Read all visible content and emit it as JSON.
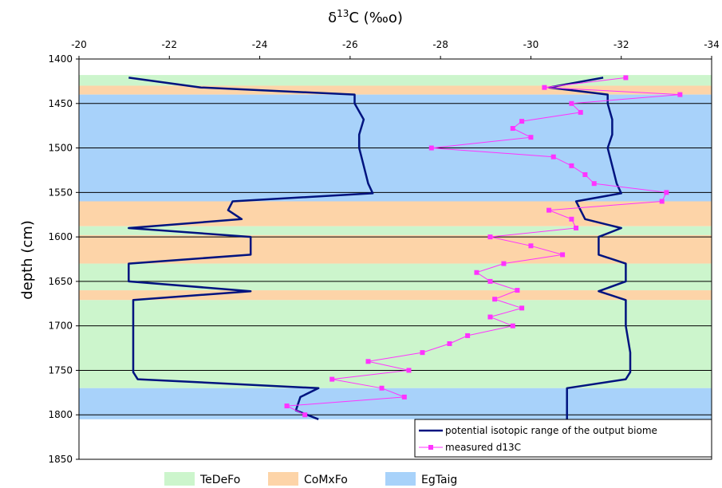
{
  "chart_data": {
    "type": "line",
    "title": "",
    "x_axis": {
      "label_base": "δ",
      "label_sup": "13",
      "label_rest": "C (‰o)",
      "min": -20,
      "max": -34,
      "ticks": [
        -20,
        -22,
        -24,
        -26,
        -28,
        -30,
        -32,
        -34
      ],
      "position": "top"
    },
    "y_axis": {
      "label": "depth (cm)",
      "min": 1400,
      "max": 1850,
      "ticks": [
        1400,
        1450,
        1500,
        1550,
        1600,
        1650,
        1700,
        1750,
        1800,
        1850
      ],
      "inverted": true
    },
    "horizontal_gridlines": [
      1450,
      1500,
      1550,
      1600,
      1650,
      1700,
      1750,
      1800
    ],
    "biome_bands": [
      {
        "biome": "TeDeFo",
        "from": 1418,
        "to": 1430
      },
      {
        "biome": "CoMxFo",
        "from": 1430,
        "to": 1440
      },
      {
        "biome": "EgTaig",
        "from": 1440,
        "to": 1560
      },
      {
        "biome": "CoMxFo",
        "from": 1560,
        "to": 1588
      },
      {
        "biome": "TeDeFo",
        "from": 1588,
        "to": 1598
      },
      {
        "biome": "CoMxFo",
        "from": 1598,
        "to": 1630
      },
      {
        "biome": "TeDeFo",
        "from": 1630,
        "to": 1660
      },
      {
        "biome": "CoMxFo",
        "from": 1660,
        "to": 1671
      },
      {
        "biome": "TeDeFo",
        "from": 1671,
        "to": 1770
      },
      {
        "biome": "EgTaig",
        "from": 1770,
        "to": 1805
      }
    ],
    "biome_legend": [
      {
        "name": "TeDeFo",
        "color": "#ccf5cc"
      },
      {
        "name": "CoMxFo",
        "color": "#fdd4a8"
      },
      {
        "name": "EgTaig",
        "color": "#a8d2fa"
      }
    ],
    "range_lines": {
      "name": "potential isotopic range of the output biome",
      "color": "#00137f",
      "left": [
        [
          -21.1,
          1421
        ],
        [
          -22.7,
          1432
        ],
        [
          -26.1,
          1440
        ],
        [
          -26.1,
          1450
        ],
        [
          -26.3,
          1468
        ],
        [
          -26.2,
          1485
        ],
        [
          -26.2,
          1500
        ],
        [
          -26.3,
          1520
        ],
        [
          -26.4,
          1540
        ],
        [
          -26.5,
          1551
        ],
        [
          -23.4,
          1560
        ],
        [
          -23.3,
          1570
        ],
        [
          -23.6,
          1580
        ],
        [
          -21.1,
          1590
        ],
        [
          -23.8,
          1600
        ],
        [
          -23.8,
          1620
        ],
        [
          -21.1,
          1630
        ],
        [
          -21.1,
          1650
        ],
        [
          -23.8,
          1661
        ],
        [
          -21.2,
          1671
        ],
        [
          -21.2,
          1700
        ],
        [
          -21.2,
          1730
        ],
        [
          -21.2,
          1752
        ],
        [
          -21.3,
          1760
        ],
        [
          -25.3,
          1770
        ],
        [
          -24.9,
          1780
        ],
        [
          -24.8,
          1795
        ],
        [
          -25.3,
          1805
        ]
      ],
      "right": [
        [
          -31.6,
          1421
        ],
        [
          -30.4,
          1432
        ],
        [
          -31.7,
          1440
        ],
        [
          -31.7,
          1450
        ],
        [
          -31.8,
          1468
        ],
        [
          -31.8,
          1485
        ],
        [
          -31.7,
          1500
        ],
        [
          -31.8,
          1520
        ],
        [
          -31.9,
          1540
        ],
        [
          -32.0,
          1551
        ],
        [
          -31.0,
          1560
        ],
        [
          -31.1,
          1570
        ],
        [
          -31.2,
          1580
        ],
        [
          -32.0,
          1590
        ],
        [
          -31.5,
          1600
        ],
        [
          -31.5,
          1620
        ],
        [
          -32.1,
          1630
        ],
        [
          -32.1,
          1650
        ],
        [
          -31.5,
          1661
        ],
        [
          -32.1,
          1671
        ],
        [
          -32.1,
          1700
        ],
        [
          -32.2,
          1730
        ],
        [
          -32.2,
          1752
        ],
        [
          -32.1,
          1760
        ],
        [
          -30.8,
          1770
        ],
        [
          -30.8,
          1780
        ],
        [
          -30.8,
          1805
        ]
      ]
    },
    "measured": {
      "name": "measured d13C",
      "color": "#ff33ff",
      "points": [
        [
          -32.1,
          1421
        ],
        [
          -30.3,
          1432
        ],
        [
          -33.3,
          1440
        ],
        [
          -30.9,
          1450
        ],
        [
          -31.1,
          1460
        ],
        [
          -29.8,
          1470
        ],
        [
          -29.6,
          1478
        ],
        [
          -30.0,
          1488
        ],
        [
          -27.8,
          1500
        ],
        [
          -30.5,
          1510
        ],
        [
          -30.9,
          1520
        ],
        [
          -31.2,
          1530
        ],
        [
          -31.4,
          1540
        ],
        [
          -33.0,
          1550
        ],
        [
          -32.9,
          1560
        ],
        [
          -30.4,
          1570
        ],
        [
          -30.9,
          1580
        ],
        [
          -31.0,
          1590
        ],
        [
          -29.1,
          1600
        ],
        [
          -30.0,
          1610
        ],
        [
          -30.7,
          1620
        ],
        [
          -29.4,
          1630
        ],
        [
          -28.8,
          1640
        ],
        [
          -29.1,
          1650
        ],
        [
          -29.7,
          1660
        ],
        [
          -29.2,
          1670
        ],
        [
          -29.8,
          1680
        ],
        [
          -29.1,
          1690
        ],
        [
          -29.6,
          1700
        ],
        [
          -28.6,
          1711
        ],
        [
          -28.2,
          1720
        ],
        [
          -27.6,
          1730
        ],
        [
          -26.4,
          1740
        ],
        [
          -27.3,
          1750
        ],
        [
          -25.6,
          1760
        ],
        [
          -26.7,
          1770
        ],
        [
          -27.2,
          1780
        ],
        [
          -24.6,
          1790
        ],
        [
          -25.0,
          1800
        ]
      ]
    },
    "grid": true,
    "legend_position": "bottom-right"
  }
}
